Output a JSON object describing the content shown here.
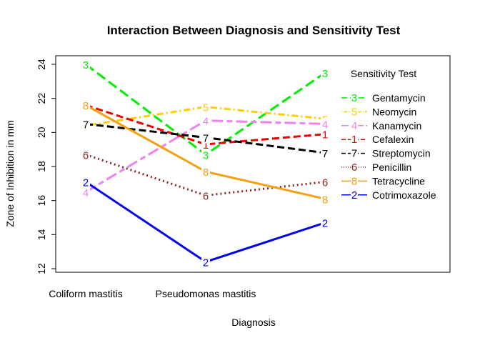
{
  "chart_data": {
    "type": "line",
    "title": "Interaction Between Diagnosis and Sensitivity Test",
    "xlabel": "Diagnosis",
    "ylabel": "Zone of Inhibition in mm",
    "x_tick_labels": [
      "Coliform mastitis",
      "Pseudomonas mastitis",
      ""
    ],
    "ylim": [
      12,
      24
    ],
    "y_ticks": [
      12,
      14,
      16,
      18,
      20,
      22,
      24
    ],
    "legend_title": "Sensitivity Test",
    "legend_position": "right",
    "grid": false,
    "series": [
      {
        "name": "Gentamycin",
        "symbol": "3",
        "color": "#00ee00",
        "dash": "long",
        "values": [
          24.0,
          18.7,
          23.5
        ]
      },
      {
        "name": "Neomycin",
        "symbol": "5",
        "color": "#ffcc00",
        "dash": "dotdash",
        "values": [
          20.4,
          21.5,
          20.8
        ]
      },
      {
        "name": "Kanamycin",
        "symbol": "4",
        "color": "#ee82ee",
        "dash": "twodash",
        "values": [
          16.5,
          20.7,
          20.5
        ]
      },
      {
        "name": "Cefalexin",
        "symbol": "1",
        "color": "#ee0000",
        "dash": "dashed",
        "values": [
          21.6,
          19.3,
          19.9
        ]
      },
      {
        "name": "Streptomycin",
        "symbol": "7",
        "color": "#000000",
        "dash": "dashed",
        "values": [
          20.5,
          19.7,
          18.8
        ]
      },
      {
        "name": "Penicillin",
        "symbol": "6",
        "color": "#8b2525",
        "dash": "dotted",
        "values": [
          18.7,
          16.3,
          17.1
        ]
      },
      {
        "name": "Tetracycline",
        "symbol": "8",
        "color": "#f5a00f",
        "dash": "solid",
        "values": [
          21.6,
          17.7,
          16.1
        ]
      },
      {
        "name": "Cotrimoxazole",
        "symbol": "2",
        "color": "#0000ee",
        "dash": "solid",
        "values": [
          17.1,
          12.4,
          14.7
        ]
      }
    ]
  }
}
